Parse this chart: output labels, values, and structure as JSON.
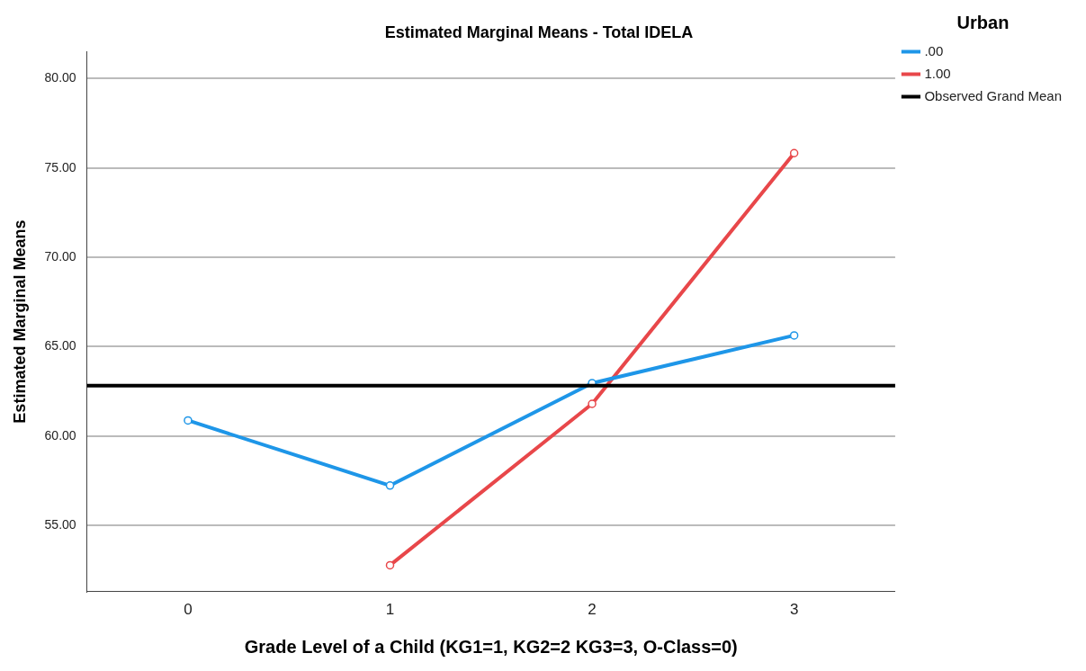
{
  "chart_data": {
    "type": "line",
    "title": "Estimated Marginal Means - Total IDELA",
    "xlabel": "Grade Level of a Child (KG1=1, KG2=2 KG3=3, O-Class=0)",
    "ylabel": "Estimated Marginal Means",
    "legend_title": "Urban",
    "categories": [
      "0",
      "1",
      "2",
      "3"
    ],
    "series": [
      {
        "name": ".00",
        "color": "#1e96e8",
        "values": [
          60.87,
          57.23,
          62.96,
          65.63
        ]
      },
      {
        "name": "1.00",
        "color": "#e8474a",
        "values": [
          null,
          52.77,
          61.8,
          75.83
        ]
      }
    ],
    "ref_lines": [
      {
        "axis": "y",
        "value": 62.82,
        "label": "Observed Grand Mean",
        "color": "#000000"
      }
    ],
    "ylim": [
      51.3,
      81.5
    ],
    "yticks": [
      {
        "value": 55,
        "label": "55.00"
      },
      {
        "value": 60,
        "label": "60.00"
      },
      {
        "value": 65,
        "label": "65.00"
      },
      {
        "value": 70,
        "label": "70.00"
      },
      {
        "value": 75,
        "label": "75.00"
      },
      {
        "value": 80,
        "label": "80.00"
      }
    ],
    "grid": "y",
    "legend": "top right",
    "marker": "circle",
    "line_style": "solid"
  }
}
